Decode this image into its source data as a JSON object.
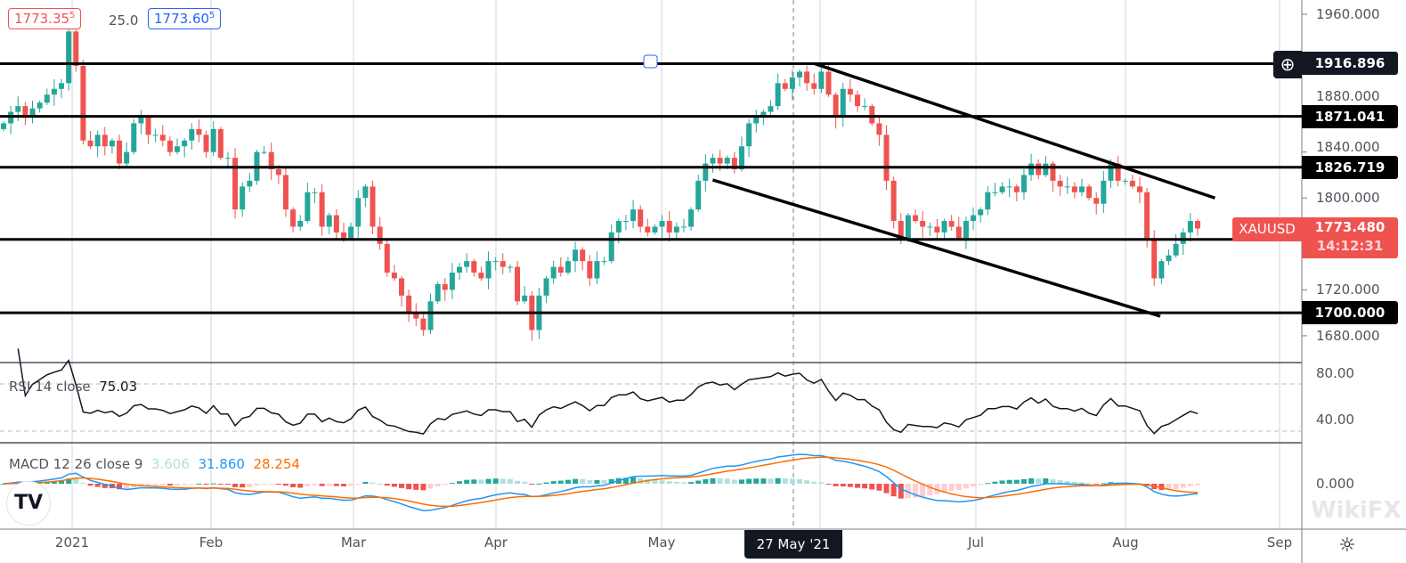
{
  "header": {
    "bid": "1773.35",
    "bid_sup": "5",
    "spread": "25.0",
    "ask": "1773.60",
    "ask_sup": "5"
  },
  "symbol": {
    "name": "XAUUSD",
    "price": "1773.480",
    "countdown": "14:12:31"
  },
  "crosshair": {
    "date_label": "27 May '21",
    "price_label": "1916.896"
  },
  "rsi": {
    "label": "RSI 14 close",
    "value": "75.03",
    "ticks": [
      "80.00",
      "40.00"
    ]
  },
  "macd": {
    "label": "MACD 12 26 close 9",
    "hist": "3.606",
    "macd": "31.860",
    "signal": "28.254",
    "tick": "0.000"
  },
  "colors": {
    "up": "#26a69a",
    "down": "#ef5350",
    "macd": "#2196f3",
    "signal": "#ff6d00",
    "hist_up": "#26a69a",
    "hist_up_light": "#b2dfdb",
    "hist_dn": "#ef5350",
    "hist_dn_light": "#ffcdd2"
  },
  "watermark": "WikiFX",
  "chart_data": {
    "type": "candlestick",
    "symbol": "XAUUSD",
    "timeframe": "1D",
    "ylim": [
      1660,
      1975
    ],
    "price_ticks": [
      "1960.000",
      "1880.000",
      "1840.000",
      "1800.000",
      "1720.000",
      "1680.000"
    ],
    "price_tick_values": [
      1960,
      1880,
      1840,
      1800,
      1720,
      1680
    ],
    "time_ticks": [
      {
        "label": "2021",
        "date": "2021-01-01"
      },
      {
        "label": "Feb",
        "date": "2021-02-01"
      },
      {
        "label": "Mar",
        "date": "2021-03-01"
      },
      {
        "label": "Apr",
        "date": "2021-04-01"
      },
      {
        "label": "May",
        "date": "2021-05-01"
      },
      {
        "label": "Jul",
        "date": "2021-07-01"
      },
      {
        "label": "Aug",
        "date": "2021-08-01"
      },
      {
        "label": "Sep",
        "date": "2021-09-01"
      }
    ],
    "closes": [
      1865,
      1875,
      1880,
      1870,
      1878,
      1883,
      1890,
      1895,
      1900,
      1945,
      1915,
      1850,
      1845,
      1855,
      1845,
      1850,
      1830,
      1840,
      1865,
      1870,
      1855,
      1855,
      1850,
      1840,
      1845,
      1850,
      1860,
      1855,
      1840,
      1860,
      1835,
      1835,
      1790,
      1810,
      1815,
      1840,
      1840,
      1825,
      1820,
      1790,
      1775,
      1780,
      1805,
      1805,
      1775,
      1785,
      1770,
      1765,
      1775,
      1800,
      1810,
      1775,
      1760,
      1735,
      1730,
      1715,
      1700,
      1695,
      1685,
      1710,
      1725,
      1720,
      1735,
      1740,
      1745,
      1735,
      1730,
      1745,
      1745,
      1740,
      1740,
      1710,
      1715,
      1685,
      1715,
      1730,
      1740,
      1735,
      1745,
      1755,
      1745,
      1730,
      1745,
      1745,
      1770,
      1780,
      1780,
      1790,
      1775,
      1770,
      1775,
      1780,
      1770,
      1775,
      1775,
      1790,
      1815,
      1830,
      1835,
      1830,
      1835,
      1825,
      1845,
      1865,
      1870,
      1875,
      1880,
      1900,
      1895,
      1905,
      1910,
      1900,
      1895,
      1910,
      1890,
      1870,
      1895,
      1890,
      1880,
      1880,
      1865,
      1855,
      1815,
      1780,
      1765,
      1785,
      1780,
      1775,
      1775,
      1770,
      1780,
      1775,
      1765,
      1780,
      1785,
      1790,
      1805,
      1805,
      1810,
      1810,
      1805,
      1820,
      1830,
      1820,
      1830,
      1815,
      1810,
      1810,
      1805,
      1810,
      1800,
      1795,
      1815,
      1830,
      1815,
      1815,
      1810,
      1805,
      1765,
      1730,
      1745,
      1750,
      1760,
      1770,
      1780,
      1773.48
    ],
    "horizontal_levels": [
      {
        "price": 1916.896,
        "label": "1916.896"
      },
      {
        "price": 1871.041,
        "label": "1871.041"
      },
      {
        "price": 1826.719,
        "label": "1826.719"
      },
      {
        "price": 1763.887,
        "label": "1763.887"
      },
      {
        "price": 1700.0,
        "label": "1700.000"
      }
    ],
    "trendlines": [
      {
        "from": [
          "2021-05-31",
          1916.9
        ],
        "to": [
          "2021-08-19",
          1800
        ]
      },
      {
        "from": [
          "2021-05-11",
          1815.7
        ],
        "to": [
          "2021-08-08",
          1697
        ]
      }
    ]
  }
}
